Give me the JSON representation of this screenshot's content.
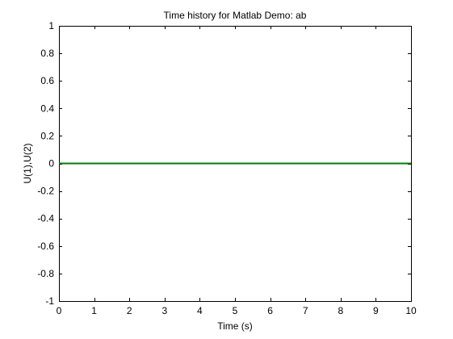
{
  "chart_data": {
    "type": "line",
    "title": "Time history for Matlab Demo: ab",
    "xlabel": "Time (s)",
    "ylabel": "U(1),U(2)",
    "xlim": [
      0,
      10
    ],
    "ylim": [
      -1,
      1
    ],
    "x_ticks": [
      0,
      1,
      2,
      3,
      4,
      5,
      6,
      7,
      8,
      9,
      10
    ],
    "y_ticks": [
      -1,
      -0.8,
      -0.6,
      -0.4,
      -0.2,
      0,
      0.2,
      0.4,
      0.6,
      0.8,
      1
    ],
    "x_tick_labels": [
      "0",
      "1",
      "2",
      "3",
      "4",
      "5",
      "6",
      "7",
      "8",
      "9",
      "10"
    ],
    "y_tick_labels": [
      "-1",
      "-0.8",
      "-0.6",
      "-0.4",
      "-0.2",
      "0",
      "0.2",
      "0.4",
      "0.6",
      "0.8",
      "1"
    ],
    "grid": false,
    "legend": "none",
    "series": [
      {
        "x": [
          0,
          10
        ],
        "y": [
          0,
          0
        ],
        "color": "#0000ff"
      },
      {
        "x": [
          0,
          10
        ],
        "y": [
          0,
          0
        ],
        "color": "#007f00"
      }
    ]
  }
}
